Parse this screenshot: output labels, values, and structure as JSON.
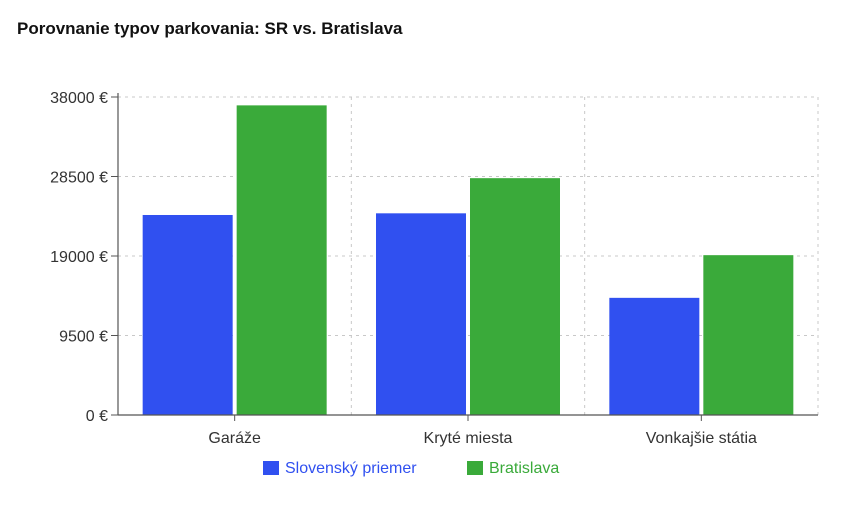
{
  "chart_data": {
    "type": "bar",
    "title": "Porovnanie typov parkovania: SR vs. Bratislava",
    "categories": [
      "Garáže",
      "Kryté miesta",
      "Vonkajšie státia"
    ],
    "series": [
      {
        "name": "Slovenský priemer",
        "values": [
          23900,
          24100,
          14000
        ],
        "color": "#3050f0"
      },
      {
        "name": "Bratislava",
        "values": [
          37000,
          28300,
          19100
        ],
        "color": "#3aaa3a"
      }
    ],
    "ylim": [
      0,
      38000
    ],
    "yticks": [
      0,
      9500,
      19000,
      28500,
      38000
    ],
    "ytick_labels": [
      "0 €",
      "9500 €",
      "19000 €",
      "28500 €",
      "38000 €"
    ],
    "xlabel": "",
    "ylabel": "",
    "grid": true,
    "legend_position": "bottom-center"
  }
}
